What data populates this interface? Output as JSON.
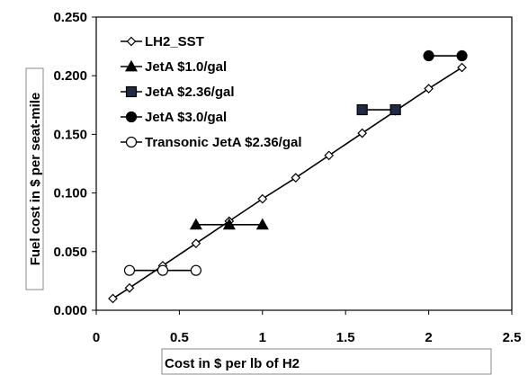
{
  "chart_data": {
    "type": "scatter",
    "xlabel": "Cost in $ per lb of H2",
    "ylabel": "Fuel cost in $ per seat-mile",
    "xlim": [
      0,
      2.5
    ],
    "ylim": [
      0,
      0.25
    ],
    "xticks": [
      "0",
      "0.5",
      "1",
      "1.5",
      "2",
      "2.5"
    ],
    "yticks": [
      "0.000",
      "0.050",
      "0.100",
      "0.150",
      "0.200",
      "0.250"
    ],
    "grid": false,
    "legend_position": "top-left",
    "series": [
      {
        "name": "LH2_SST",
        "marker": "diamond-open",
        "line": true,
        "points": [
          [
            0.1,
            0.01
          ],
          [
            0.2,
            0.019
          ],
          [
            0.4,
            0.038
          ],
          [
            0.6,
            0.057
          ],
          [
            0.8,
            0.076
          ],
          [
            1.0,
            0.095
          ],
          [
            1.2,
            0.113
          ],
          [
            1.4,
            0.132
          ],
          [
            1.6,
            0.151
          ],
          [
            1.8,
            0.17
          ],
          [
            2.0,
            0.189
          ],
          [
            2.2,
            0.207
          ]
        ]
      },
      {
        "name": "JetA $1.0/gal",
        "marker": "triangle-filled",
        "line": true,
        "points": [
          [
            0.6,
            0.073
          ],
          [
            0.8,
            0.073
          ],
          [
            1.0,
            0.073
          ]
        ]
      },
      {
        "name": "JetA $2.36/gal",
        "marker": "square-filled",
        "line": true,
        "points": [
          [
            1.6,
            0.171
          ],
          [
            1.8,
            0.171
          ]
        ]
      },
      {
        "name": "JetA $3.0/gal",
        "marker": "circle-filled",
        "line": true,
        "points": [
          [
            2.0,
            0.217
          ],
          [
            2.2,
            0.217
          ]
        ]
      },
      {
        "name": "Transonic JetA $2.36/gal",
        "marker": "circle-open",
        "line": true,
        "points": [
          [
            0.2,
            0.034
          ],
          [
            0.4,
            0.034
          ],
          [
            0.6,
            0.034
          ]
        ]
      }
    ]
  }
}
